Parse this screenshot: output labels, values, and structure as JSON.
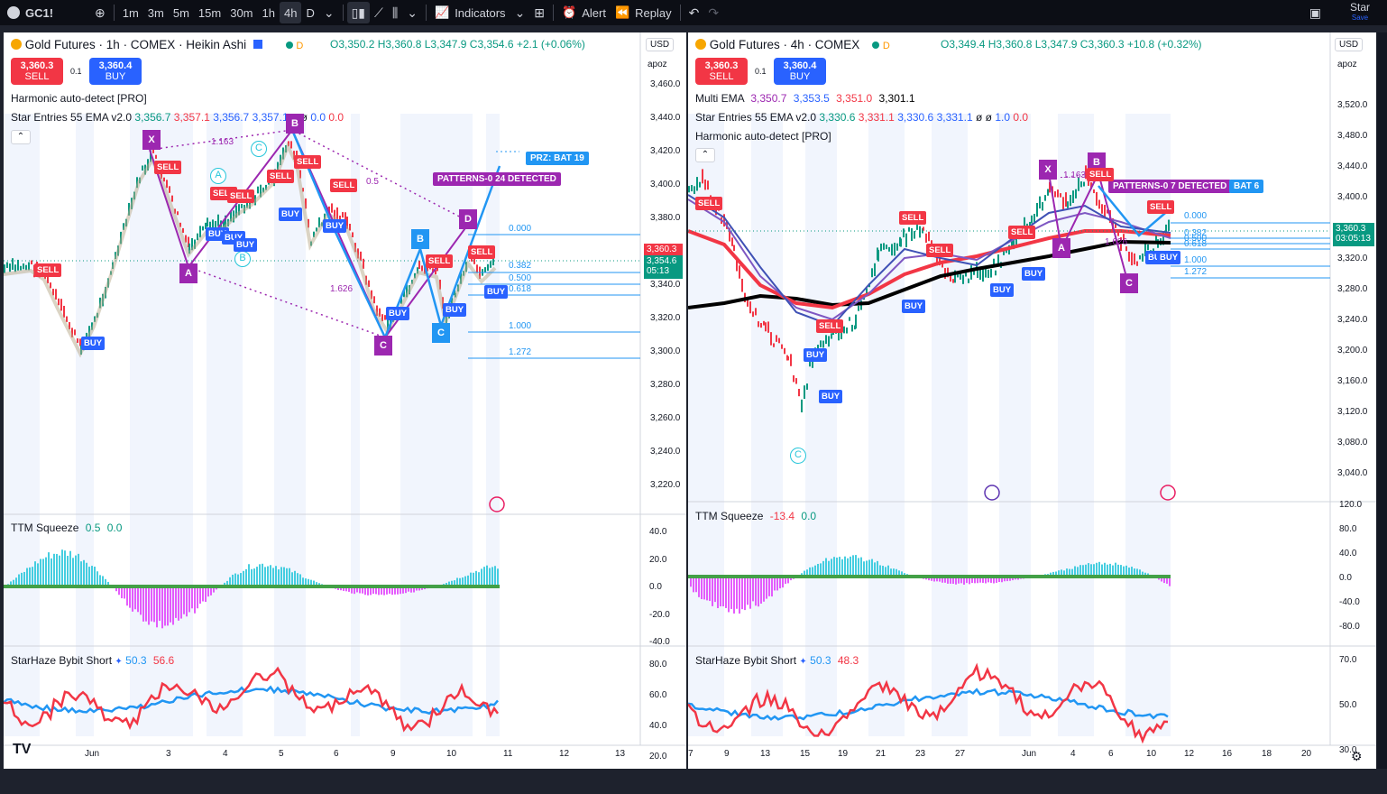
{
  "toolbar": {
    "symbol": "GC1!",
    "intervals": [
      "1m",
      "3m",
      "5m",
      "15m",
      "30m",
      "1h",
      "4h",
      "D"
    ],
    "indicators": "Indicators",
    "alert": "Alert",
    "replay": "Replay",
    "star": "Star",
    "save": "Save"
  },
  "left": {
    "title": "Gold Futures · 1h · COMEX · Heikin Ashi",
    "ohlc": "O3,350.2 H3,360.8 L3,347.9 C3,354.6 +2.1 (+0.06%)",
    "sell_price": "3,360.3",
    "sell": "SELL",
    "spread": "0.1",
    "buy_price": "3,360.4",
    "buy": "BUY",
    "ind1": "Harmonic auto-detect [PRO]",
    "ind2_name": "Star Entries 55 EMA v2.0",
    "ind2_v1": "3,356.7",
    "ind2_v2": "3,357.1",
    "ind2_v3": "3,356.7",
    "ind2_v4": "3,357.1",
    "ind2_v5": "0.0",
    "ind2_v6": "0.0",
    "currency": "USD",
    "scale": "apoz",
    "price_axis": [
      "3,460.0",
      "3,440.0",
      "3,420.0",
      "3,400.0",
      "3,380.0",
      "3,360.0",
      "3,340.0",
      "3,320.0",
      "3,300.0",
      "3,280.0",
      "3,260.0",
      "3,240.0",
      "3,220.0"
    ],
    "last_price": "3,360.3",
    "close_tag": "3,354.6",
    "countdown": "05:13",
    "prz": "PRZ: BAT 19",
    "patterns": "PATTERNS-0 24 DETECTED",
    "fib": [
      "0.000",
      "0.382",
      "0.500",
      "0.618",
      "1.000",
      "1.272"
    ],
    "ratios": [
      "1.163",
      "0.5",
      "1.626"
    ],
    "points": [
      "X",
      "A",
      "B",
      "C",
      "D",
      "B",
      "C"
    ],
    "circles": [
      "A",
      "B",
      "C"
    ],
    "ttm_name": "TTM Squeeze",
    "ttm_v1": "0.5",
    "ttm_v2": "0.0",
    "ttm_axis": [
      "40.0",
      "20.0",
      "0.0",
      "-20.0",
      "-40.0"
    ],
    "sh_name": "StarHaze Bybit Short",
    "sh_v1": "50.3",
    "sh_v2": "56.6",
    "sh_axis": [
      "80.0",
      "60.0",
      "40.0",
      "20.0"
    ],
    "dates": [
      "Jun",
      "3",
      "4",
      "5",
      "6",
      "9",
      "10",
      "11",
      "12",
      "13"
    ]
  },
  "right": {
    "title": "Gold Futures · 4h · COMEX",
    "ohlc": "O3,349.4 H3,360.8 L3,347.9 C3,360.3 +10.8 (+0.32%)",
    "sell_price": "3,360.3",
    "sell": "SELL",
    "spread": "0.1",
    "buy_price": "3,360.4",
    "buy": "BUY",
    "ind0_name": "Multi EMA",
    "ind0_v1": "3,350.7",
    "ind0_v2": "3,353.5",
    "ind0_v3": "3,351.0",
    "ind0_v4": "3,301.1",
    "ind2_name": "Star Entries 55 EMA v2.0",
    "ind2_v1": "3,330.6",
    "ind2_v2": "3,331.1",
    "ind2_v3": "3,330.6",
    "ind2_v4": "3,331.1",
    "ind2_v5": "1.0",
    "ind2_v6": "0.0",
    "ind1": "Harmonic auto-detect [PRO]",
    "currency": "USD",
    "scale": "apoz",
    "price_axis": [
      "3,520.0",
      "3,480.0",
      "3,440.0",
      "3,400.0",
      "3,360.0",
      "3,320.0",
      "3,280.0",
      "3,240.0",
      "3,200.0",
      "3,160.0",
      "3,120.0",
      "3,080.0",
      "3,040.0"
    ],
    "last_price": "3,360.3",
    "countdown": "03:05:13",
    "patterns": "PATTERNS-0 7 DETECTED",
    "bat": "BAT 6",
    "fib": [
      "0.000",
      "0.382",
      "0.500",
      "0.618",
      "1.000",
      "1.272"
    ],
    "ratios": [
      "1.163",
      "1.626"
    ],
    "points": [
      "X",
      "A",
      "B",
      "C"
    ],
    "circles": [
      "C"
    ],
    "ttm_name": "TTM Squeeze",
    "ttm_v1": "-13.4",
    "ttm_v2": "0.0",
    "ttm_axis": [
      "120.0",
      "80.0",
      "40.0",
      "0.0",
      "-40.0",
      "-80.0"
    ],
    "sh_name": "StarHaze Bybit Short",
    "sh_v1": "50.3",
    "sh_v2": "48.3",
    "sh_axis": [
      "70.0",
      "50.0",
      "30.0"
    ],
    "dates": [
      "7",
      "9",
      "13",
      "15",
      "19",
      "21",
      "23",
      "27",
      "Jun",
      "4",
      "6",
      "10",
      "12",
      "16",
      "18",
      "20"
    ]
  },
  "colors": {
    "up": "#089981",
    "down": "#f23645",
    "purple": "#9c27b0",
    "blue": "#2196f3"
  }
}
